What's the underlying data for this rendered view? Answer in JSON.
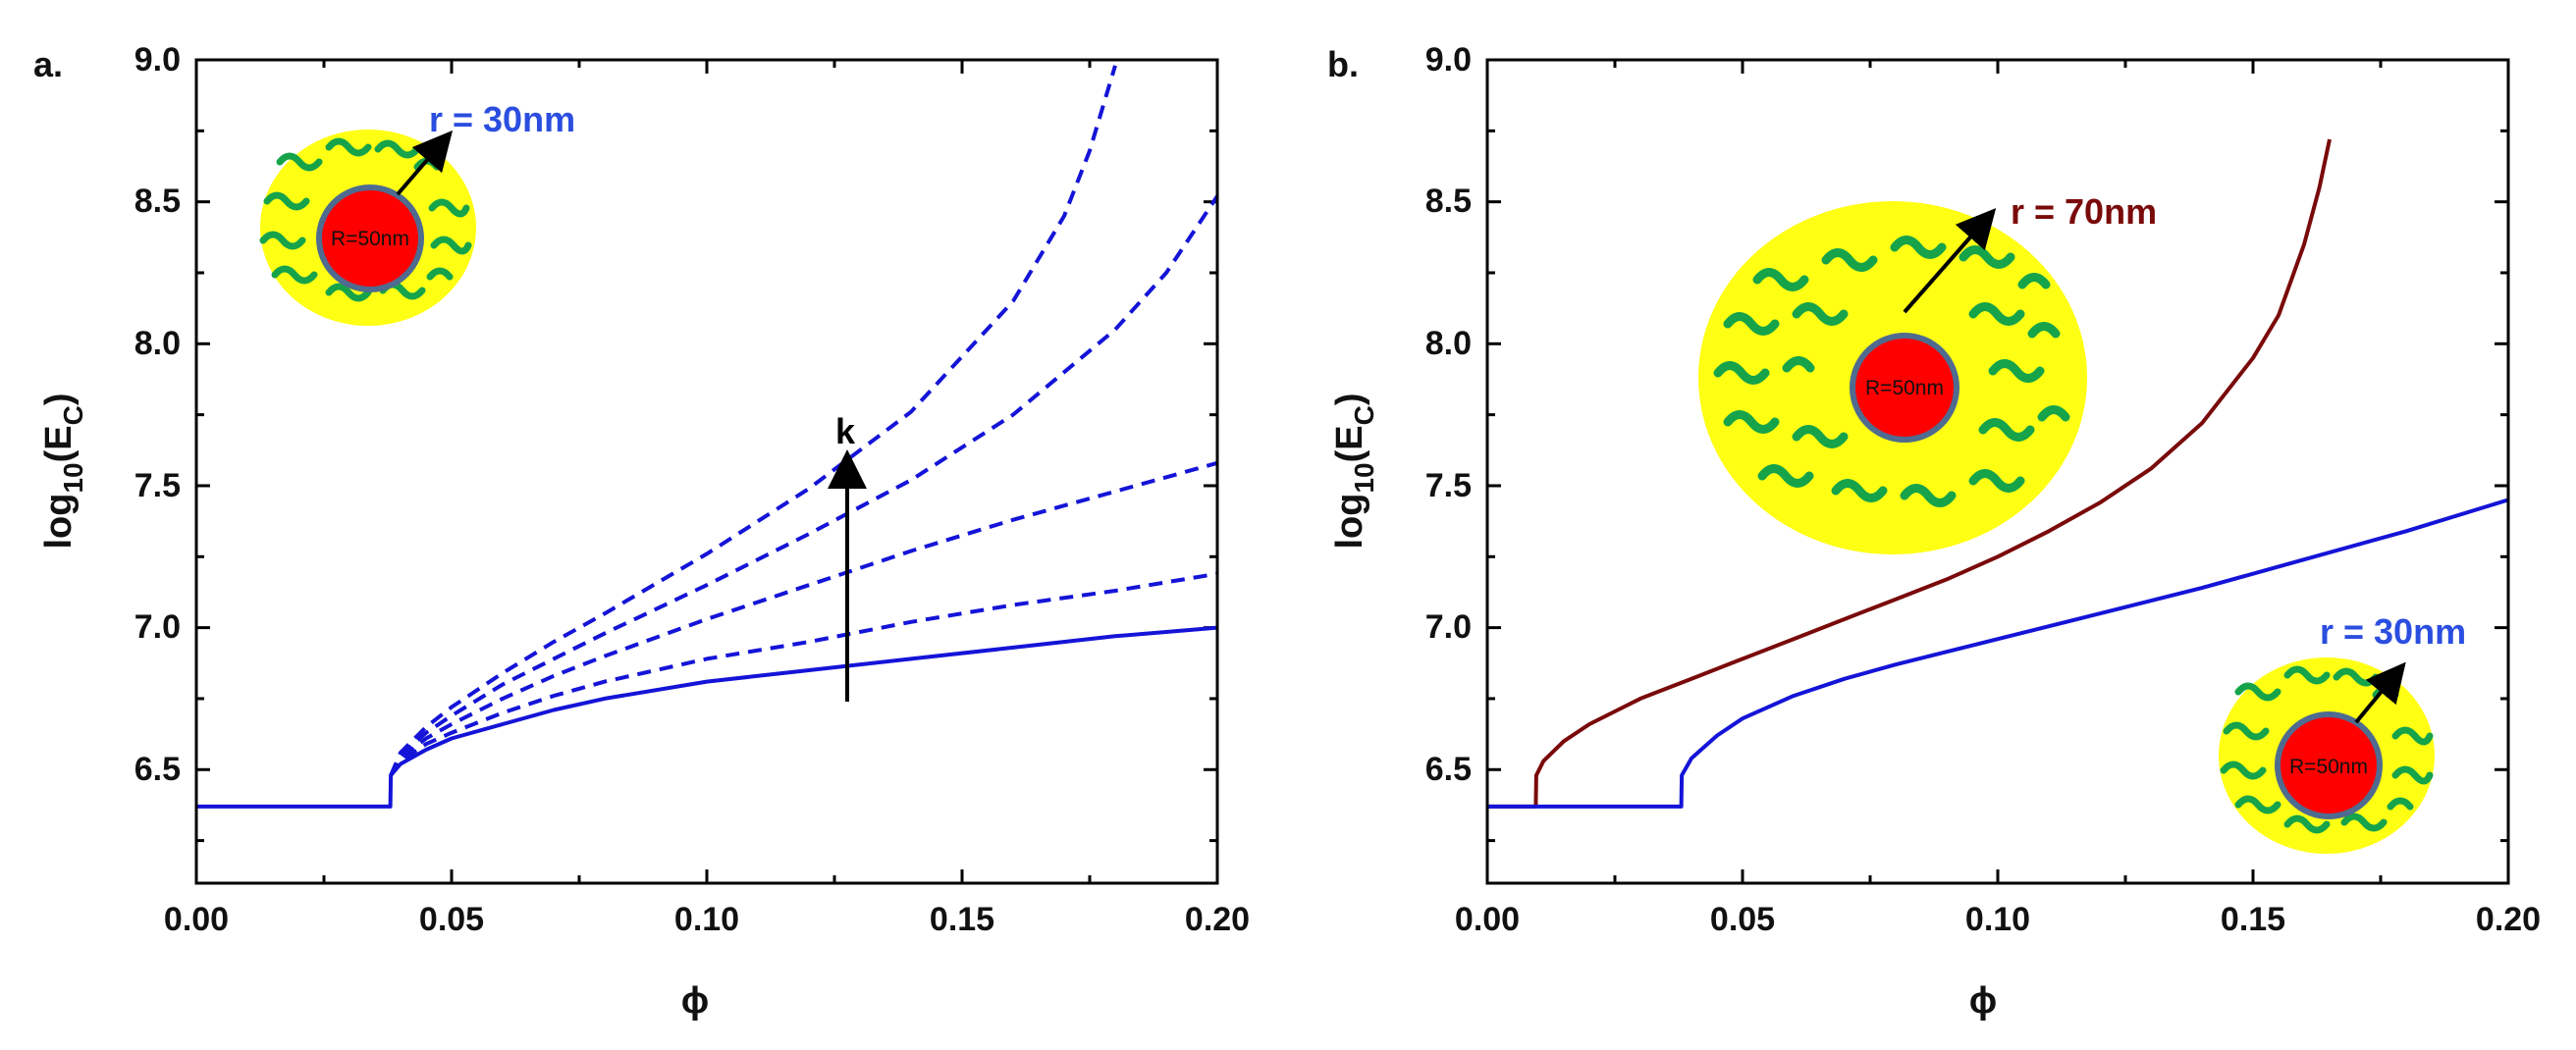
{
  "colors": {
    "blue": "#1414d8",
    "dark_red": "#7a0a0a",
    "label_blue": "#2b4ee0",
    "label_red": "#7a0a0a",
    "yellow": "#ffff14",
    "red": "#ff0000",
    "green": "#16a34a",
    "core_ring": "#4f6b8f",
    "black": "#000000"
  },
  "chart_data": [
    {
      "type": "line",
      "panel_label": "a.",
      "xlabel": "ϕ",
      "ylabel_main": "log",
      "ylabel_sub1": "10",
      "ylabel_mid": "(E",
      "ylabel_sub2": "C",
      "ylabel_end": ")",
      "xlim": [
        0.0,
        0.2
      ],
      "ylim": [
        6.1,
        9.0
      ],
      "xticks": [
        "0.00",
        "0.05",
        "0.10",
        "0.15",
        "0.20"
      ],
      "yticks": [
        "6.5",
        "7.0",
        "7.5",
        "8.0",
        "8.5",
        "9.0"
      ],
      "annotations": {
        "shell_label": "r = 30nm",
        "core_label": "R=50nm",
        "arrow_label": "k"
      },
      "series": [
        {
          "name": "solid",
          "style": "solid",
          "color_key": "blue",
          "x": [
            0.0,
            0.038,
            0.0381,
            0.04,
            0.045,
            0.05,
            0.06,
            0.07,
            0.08,
            0.1,
            0.12,
            0.14,
            0.16,
            0.18,
            0.2
          ],
          "y": [
            6.37,
            6.37,
            6.48,
            6.52,
            6.57,
            6.61,
            6.66,
            6.71,
            6.75,
            6.81,
            6.85,
            6.89,
            6.93,
            6.97,
            7.0
          ]
        },
        {
          "name": "dashed-1",
          "style": "dashed",
          "color_key": "blue",
          "x": [
            0.0381,
            0.04,
            0.045,
            0.05,
            0.06,
            0.07,
            0.08,
            0.1,
            0.12,
            0.14,
            0.16,
            0.18,
            0.2
          ],
          "y": [
            6.48,
            6.53,
            6.59,
            6.63,
            6.7,
            6.76,
            6.81,
            6.89,
            6.95,
            7.02,
            7.08,
            7.13,
            7.19
          ]
        },
        {
          "name": "dashed-2",
          "style": "dashed",
          "color_key": "blue",
          "x": [
            0.0381,
            0.04,
            0.045,
            0.05,
            0.06,
            0.07,
            0.08,
            0.1,
            0.12,
            0.14,
            0.16,
            0.18,
            0.2
          ],
          "y": [
            6.48,
            6.54,
            6.61,
            6.66,
            6.75,
            6.83,
            6.9,
            7.03,
            7.15,
            7.27,
            7.38,
            7.48,
            7.58
          ]
        },
        {
          "name": "dashed-3",
          "style": "dashed",
          "color_key": "blue",
          "x": [
            0.0381,
            0.04,
            0.045,
            0.05,
            0.06,
            0.07,
            0.08,
            0.1,
            0.12,
            0.14,
            0.16,
            0.18,
            0.19,
            0.2
          ],
          "y": [
            6.48,
            6.55,
            6.63,
            6.69,
            6.8,
            6.89,
            6.98,
            7.15,
            7.33,
            7.52,
            7.75,
            8.05,
            8.25,
            8.52
          ]
        },
        {
          "name": "dashed-4",
          "style": "dashed",
          "color_key": "blue",
          "x": [
            0.0381,
            0.04,
            0.045,
            0.05,
            0.06,
            0.07,
            0.08,
            0.1,
            0.12,
            0.14,
            0.16,
            0.17,
            0.175,
            0.18
          ],
          "y": [
            6.48,
            6.56,
            6.65,
            6.72,
            6.84,
            6.95,
            7.05,
            7.26,
            7.49,
            7.76,
            8.15,
            8.45,
            8.68,
            8.98
          ]
        }
      ]
    },
    {
      "type": "line",
      "panel_label": "b.",
      "xlabel": "ϕ",
      "ylabel_main": "log",
      "ylabel_sub1": "10",
      "ylabel_mid": "(E",
      "ylabel_sub2": "C",
      "ylabel_end": ")",
      "xlim": [
        0.0,
        0.2
      ],
      "ylim": [
        6.1,
        9.0
      ],
      "xticks": [
        "0.00",
        "0.05",
        "0.10",
        "0.15",
        "0.20"
      ],
      "yticks": [
        "6.5",
        "7.0",
        "7.5",
        "8.0",
        "8.5",
        "9.0"
      ],
      "annotations": {
        "large_shell_label": "r = 70nm",
        "small_shell_label": "r = 30nm",
        "core_label_large": "R=50nm",
        "core_label_small": "R=50nm"
      },
      "series": [
        {
          "name": "r=70nm",
          "style": "solid",
          "color_key": "dark_red",
          "x": [
            0.0,
            0.0095,
            0.0096,
            0.011,
            0.015,
            0.02,
            0.03,
            0.04,
            0.05,
            0.06,
            0.07,
            0.08,
            0.09,
            0.1,
            0.11,
            0.12,
            0.13,
            0.14,
            0.15,
            0.155,
            0.16,
            0.163,
            0.165
          ],
          "y": [
            6.37,
            6.37,
            6.48,
            6.53,
            6.6,
            6.66,
            6.75,
            6.82,
            6.89,
            6.96,
            7.03,
            7.1,
            7.17,
            7.25,
            7.34,
            7.44,
            7.56,
            7.72,
            7.95,
            8.1,
            8.35,
            8.55,
            8.72
          ]
        },
        {
          "name": "r=30nm",
          "style": "solid",
          "color_key": "blue",
          "x": [
            0.0,
            0.038,
            0.0381,
            0.04,
            0.045,
            0.05,
            0.06,
            0.07,
            0.08,
            0.1,
            0.12,
            0.14,
            0.16,
            0.18,
            0.2
          ],
          "y": [
            6.37,
            6.37,
            6.48,
            6.54,
            6.62,
            6.68,
            6.76,
            6.82,
            6.87,
            6.96,
            7.05,
            7.14,
            7.24,
            7.34,
            7.45
          ]
        }
      ]
    }
  ]
}
